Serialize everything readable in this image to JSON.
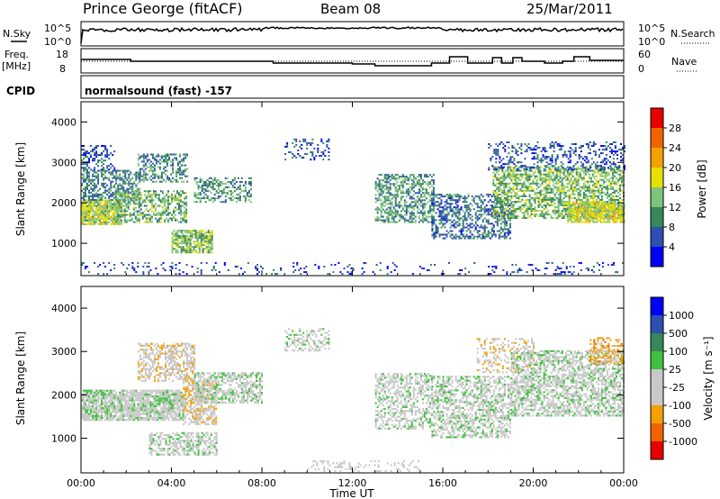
{
  "header": {
    "title": "Prince George (fitACF)",
    "beam": "Beam 08",
    "date": "25/Mar/2011"
  },
  "nsky_panel": {
    "left_label": "N.Sky",
    "right_label": "N.Search",
    "left_ticks": [
      "10^5",
      "10^0"
    ],
    "right_ticks": [
      "10^5",
      "10^0"
    ]
  },
  "freq_panel": {
    "left_label_line1": "Freq.",
    "left_label_line2": "[MHz]",
    "left_ticks": [
      "18",
      "8"
    ],
    "right_label": "Nave",
    "right_ticks": [
      "60",
      "0"
    ]
  },
  "cpid": {
    "label": "CPID",
    "value": "normalsound (fast) -157"
  },
  "colors": {
    "power": [
      "#0000ff",
      "#2e4fb0",
      "#37875a",
      "#7fc47c",
      "#e7df00",
      "#f3a000",
      "#f06400",
      "#e60000"
    ],
    "velocity": [
      "#e60000",
      "#f06400",
      "#f3a000",
      "#c8c8c8",
      "#c8c8c8",
      "#40c040",
      "#37875a",
      "#2e4fb0",
      "#0000ff"
    ]
  },
  "chart_data": [
    {
      "type": "heatmap",
      "panel": "power",
      "ylabel": "Slant Range [km]",
      "yticks": [
        "1000",
        "2000",
        "3000",
        "4000"
      ],
      "ylim": [
        200,
        4500
      ],
      "colorbar_label": "Power [dB]",
      "colorbar_ticks": [
        "4",
        "8",
        "12",
        "16",
        "20",
        "24",
        "28"
      ],
      "colorbar_range": [
        0,
        32
      ],
      "scatter_regions": [
        {
          "t": [
            0.0,
            1.8
          ],
          "r": [
            1450,
            2050
          ],
          "level": 16,
          "density": 0.9
        },
        {
          "t": [
            0.0,
            2.6
          ],
          "r": [
            2050,
            2800
          ],
          "level": 9,
          "density": 0.55
        },
        {
          "t": [
            0.0,
            1.5
          ],
          "r": [
            2800,
            3400
          ],
          "level": 6,
          "density": 0.35
        },
        {
          "t": [
            1.5,
            4.7
          ],
          "r": [
            1500,
            2300
          ],
          "level": 12,
          "density": 0.55
        },
        {
          "t": [
            2.5,
            4.7
          ],
          "r": [
            2500,
            3200
          ],
          "level": 10,
          "density": 0.5
        },
        {
          "t": [
            4.0,
            5.8
          ],
          "r": [
            750,
            1300
          ],
          "level": 14,
          "density": 0.75
        },
        {
          "t": [
            5.0,
            7.5
          ],
          "r": [
            2000,
            2600
          ],
          "level": 11,
          "density": 0.45
        },
        {
          "t": [
            9.0,
            11.0
          ],
          "r": [
            3050,
            3550
          ],
          "level": 6,
          "density": 0.25
        },
        {
          "t": [
            13.0,
            15.6
          ],
          "r": [
            1500,
            2700
          ],
          "level": 11,
          "density": 0.55
        },
        {
          "t": [
            15.5,
            19.0
          ],
          "r": [
            1100,
            2200
          ],
          "level": 8,
          "density": 0.5
        },
        {
          "t": [
            18.2,
            24.0
          ],
          "r": [
            1600,
            2900
          ],
          "level": 13,
          "density": 0.6
        },
        {
          "t": [
            21.5,
            24.0
          ],
          "r": [
            1500,
            2000
          ],
          "level": 17,
          "density": 0.8
        },
        {
          "t": [
            18.0,
            24.0
          ],
          "r": [
            2800,
            3500
          ],
          "level": 6,
          "density": 0.3
        },
        {
          "t": [
            0.0,
            24.0
          ],
          "r": [
            220,
            500
          ],
          "level": 5,
          "density": 0.12
        }
      ]
    },
    {
      "type": "heatmap",
      "panel": "velocity",
      "ylabel": "Slant Range [km]",
      "yticks": [
        "1000",
        "2000",
        "3000",
        "4000"
      ],
      "ylim": [
        200,
        4500
      ],
      "colorbar_label": "Velocity [m s⁻¹]",
      "colorbar_ticks": [
        "1000",
        "500",
        "100",
        "25",
        "-25",
        "-100",
        "-500",
        "-1000"
      ],
      "colorbar_range": [
        -1200,
        1200
      ],
      "scatter_regions": [
        {
          "t": [
            0.0,
            4.5
          ],
          "r": [
            1400,
            2100
          ],
          "v": 0,
          "density": 0.85
        },
        {
          "t": [
            2.5,
            5.0
          ],
          "r": [
            2300,
            3200
          ],
          "v": -250,
          "density": 0.55
        },
        {
          "t": [
            4.5,
            6.0
          ],
          "r": [
            1300,
            2300
          ],
          "v": -300,
          "density": 0.6
        },
        {
          "t": [
            3.0,
            6.0
          ],
          "r": [
            600,
            1100
          ],
          "v": 0,
          "density": 0.6
        },
        {
          "t": [
            5.0,
            8.0
          ],
          "r": [
            1800,
            2500
          ],
          "v": 0,
          "density": 0.6
        },
        {
          "t": [
            9.0,
            11.0
          ],
          "r": [
            3000,
            3500
          ],
          "v": 0,
          "density": 0.4
        },
        {
          "t": [
            13.0,
            15.5
          ],
          "r": [
            1200,
            2500
          ],
          "v": 0,
          "density": 0.5
        },
        {
          "t": [
            15.5,
            19.0
          ],
          "r": [
            1000,
            2400
          ],
          "v": 0,
          "density": 0.55
        },
        {
          "t": [
            17.5,
            20.0
          ],
          "r": [
            2500,
            3300
          ],
          "v": -300,
          "density": 0.35
        },
        {
          "t": [
            19.0,
            24.0
          ],
          "r": [
            1500,
            3000
          ],
          "v": 0,
          "density": 0.6
        },
        {
          "t": [
            22.5,
            24.0
          ],
          "r": [
            2700,
            3300
          ],
          "v": -500,
          "density": 0.5
        },
        {
          "t": [
            10.0,
            15.0
          ],
          "r": [
            220,
            450
          ],
          "v": -120,
          "density": 0.2
        }
      ]
    }
  ],
  "xaxis": {
    "label": "Time UT",
    "ticks": [
      "00:00",
      "04:00",
      "08:00",
      "12:00",
      "16:00",
      "20:00",
      "00:00"
    ],
    "range_hours": [
      0,
      24
    ]
  }
}
